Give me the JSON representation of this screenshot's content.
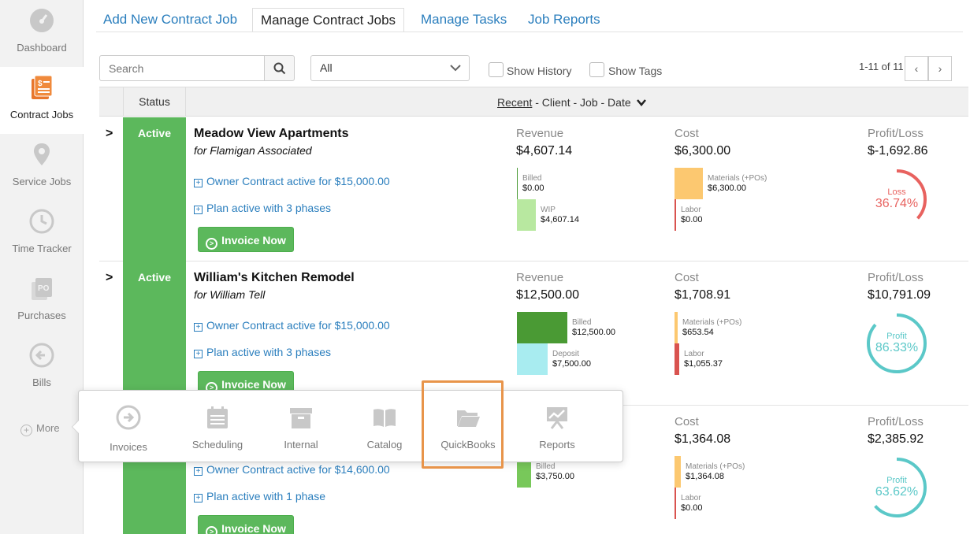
{
  "sidebar": {
    "items": [
      {
        "label": "Dashboard"
      },
      {
        "label": "Contract Jobs"
      },
      {
        "label": "Service Jobs"
      },
      {
        "label": "Time Tracker"
      },
      {
        "label": "Purchases"
      },
      {
        "label": "Bills"
      }
    ],
    "more_label": "More"
  },
  "topnav": {
    "tabs": [
      {
        "label": "Add New Contract Job"
      },
      {
        "label": "Manage Contract Jobs"
      },
      {
        "label": "Manage Tasks"
      },
      {
        "label": "Job Reports"
      }
    ]
  },
  "toolbar": {
    "search_placeholder": "Search",
    "filter_value": "All",
    "show_history": "Show History",
    "show_tags": "Show Tags",
    "pager_text": "1-11 of 11",
    "prev": "‹",
    "next": "›"
  },
  "table": {
    "status_header": "Status",
    "sort_recent": "Recent",
    "sort_rest": " - Client - Job - Date"
  },
  "rows": [
    {
      "status": "Active",
      "name": "Meadow View Apartments",
      "client": "for Flamigan Associated",
      "contract_link": "Owner Contract active for $15,000.00",
      "plan_link": "Plan active with 3 phases",
      "invoice_label": "Invoice Now",
      "revenue_label": "Revenue",
      "revenue": "$4,607.14",
      "rev_bar1_label": "Billed",
      "rev_bar1_value": "$0.00",
      "rev_bar2_label": "WIP",
      "rev_bar2_value": "$4,607.14",
      "cost_label": "Cost",
      "cost": "$6,300.00",
      "cost_bar1_label": "Materials (+POs)",
      "cost_bar1_value": "$6,300.00",
      "cost_bar2_label": "Labor",
      "cost_bar2_value": "$0.00",
      "pl_label": "Profit/Loss",
      "pl": "$-1,692.86",
      "gauge_label": "Loss",
      "gauge_value": "36.74%",
      "gauge_fraction": 0.3674,
      "gauge_color": "#e8625f"
    },
    {
      "status": "Active",
      "name": "William's Kitchen Remodel",
      "client": "for William Tell",
      "contract_link": "Owner Contract active for $15,000.00",
      "plan_link": "Plan active with 3 phases",
      "invoice_label": "Invoice Now",
      "revenue_label": "Revenue",
      "revenue": "$12,500.00",
      "rev_bar1_label": "Billed",
      "rev_bar1_value": "$12,500.00",
      "rev_bar2_label": "Deposit",
      "rev_bar2_value": "$7,500.00",
      "cost_label": "Cost",
      "cost": "$1,708.91",
      "cost_bar1_label": "Materials (+POs)",
      "cost_bar1_value": "$653.54",
      "cost_bar2_label": "Labor",
      "cost_bar2_value": "$1,055.37",
      "pl_label": "Profit/Loss",
      "pl": "$10,791.09",
      "gauge_label": "Profit",
      "gauge_value": "86.33%",
      "gauge_fraction": 0.8633,
      "gauge_color": "#5bc8c8"
    },
    {
      "status": "",
      "contract_link": "Owner Contract active for $14,600.00",
      "plan_link": "Plan active with 1 phase",
      "invoice_label": "Invoice Now",
      "rev_bar1_label": "Billed",
      "rev_bar1_value": "$3,750.00",
      "cost_label": "Cost",
      "cost": "$1,364.08",
      "cost_bar1_label": "Materials (+POs)",
      "cost_bar1_value": "$1,364.08",
      "cost_bar2_label": "Labor",
      "cost_bar2_value": "$0.00",
      "pl_label": "Profit/Loss",
      "pl": "$2,385.92",
      "gauge_label": "Profit",
      "gauge_value": "63.62%",
      "gauge_fraction": 0.6362,
      "gauge_color": "#5bc8c8"
    }
  ],
  "popover": {
    "items": [
      {
        "label": "Invoices"
      },
      {
        "label": "Scheduling"
      },
      {
        "label": "Internal"
      },
      {
        "label": "Catalog"
      },
      {
        "label": "QuickBooks"
      },
      {
        "label": "Reports"
      }
    ]
  },
  "colors": {
    "accent_blue": "#2a7ebd",
    "active_orange": "#e8762c",
    "status_green": "#5cb85c",
    "highlight_orange": "#e8944a"
  }
}
